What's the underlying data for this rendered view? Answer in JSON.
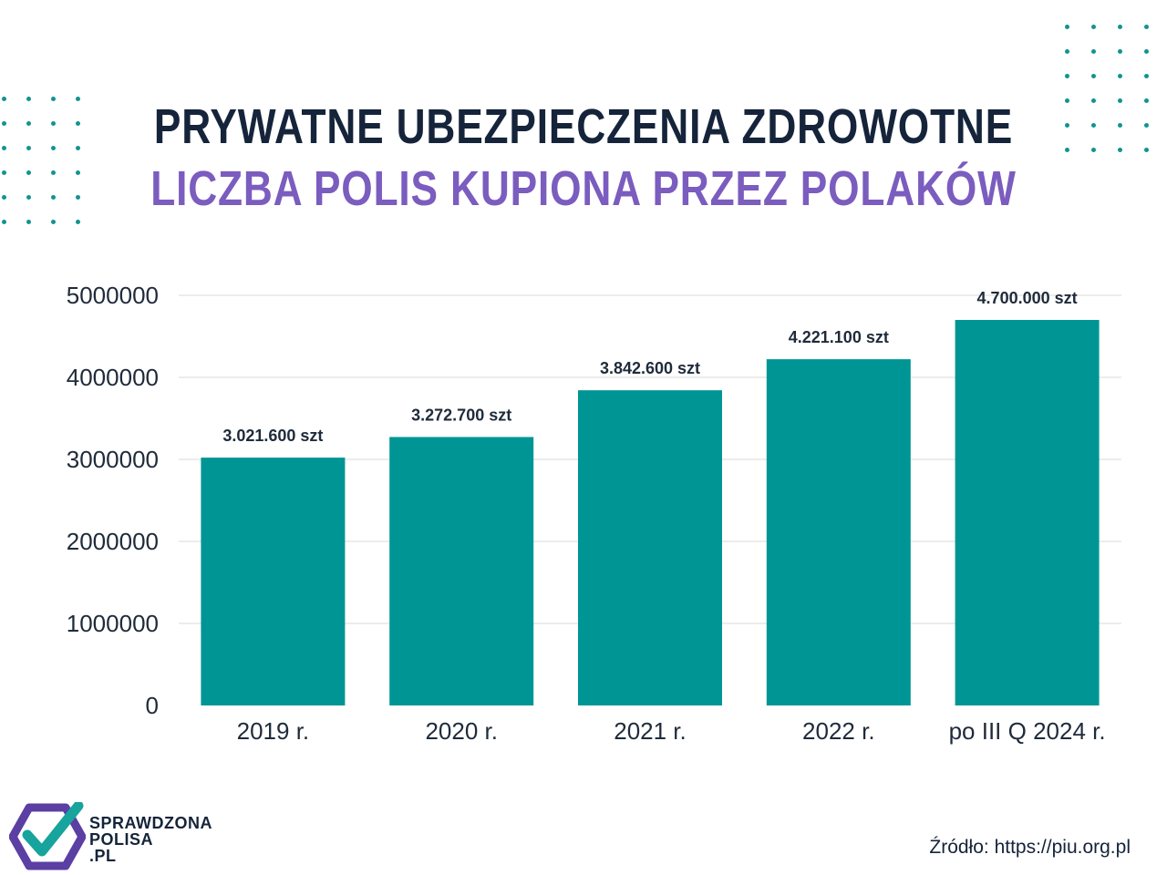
{
  "title": "PRYWATNE UBEZPIECZENIA ZDROWOTNE",
  "subtitle": "LICZBA POLIS KUPIONA PRZEZ POLAKÓW",
  "source": "Źródło: https://piu.org.pl",
  "logo": {
    "line1": "SPRAWDZONA",
    "line2": "POLISA",
    "line3": ".PL"
  },
  "colors": {
    "bar": "#009595",
    "title": "#15243a",
    "subtitle": "#7b5cbf",
    "accent_dots": "#12948f"
  },
  "chart_data": {
    "type": "bar",
    "categories": [
      "2019 r.",
      "2020 r.",
      "2021 r.",
      "2022 r.",
      "po III Q 2024 r."
    ],
    "values": [
      3021600,
      3272700,
      3842600,
      4221100,
      4700000
    ],
    "data_labels": [
      "3.021.600 szt",
      "3.272.700 szt",
      "3.842.600 szt",
      "4.221.100 szt",
      "4.700.000 szt"
    ],
    "y_ticks": [
      0,
      1000000,
      2000000,
      3000000,
      4000000,
      5000000
    ],
    "ylim": [
      0,
      5000000
    ],
    "grid": true,
    "legend": "none"
  }
}
